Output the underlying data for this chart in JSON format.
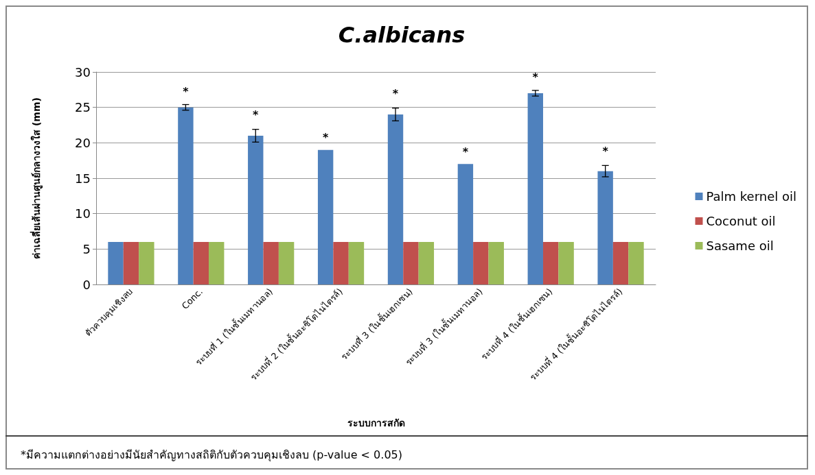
{
  "chart_data": {
    "type": "bar",
    "title": "C.albicans",
    "xlabel": "ระบบการสกัด",
    "ylabel": "ค่าเฉลี่ยเส้นผ่านศูนย์กลางวงใส (mm)",
    "categories": [
      "ตัวควบคุมเชิงลบ",
      "Conc.",
      "ระบบที่ 1 (ในชั้นเมทานอล)",
      "ระบบที่ 2 (ในชั้นอะซิโตไนไตรล์)",
      "ระบบที่ 3 (ในชั้นเฮกเซน)",
      "ระบบที่ 3 (ในชั้นเมทานอล)",
      "ระบบที่ 4 (ในชั้นเฮกเซน)",
      "ระบบที่ 4 (ในชั้นอะซิโตไนไตรล์)"
    ],
    "series": [
      {
        "name": "Palm kernel oil",
        "color": "#4f81bd",
        "values": [
          6,
          25,
          21,
          19,
          24,
          17,
          27,
          16
        ],
        "errors": [
          null,
          0.4,
          0.9,
          null,
          0.9,
          null,
          0.4,
          0.8
        ],
        "value_labels": [
          null,
          "*",
          "*",
          "*",
          "*",
          "*",
          "*",
          "*"
        ]
      },
      {
        "name": "Coconut oil",
        "color": "#c0504d",
        "values": [
          6,
          6,
          6,
          6,
          6,
          6,
          6,
          6
        ]
      },
      {
        "name": "Sasame oil",
        "color": "#9bbb59",
        "values": [
          6,
          6,
          6,
          6,
          6,
          6,
          6,
          6
        ]
      }
    ],
    "ylim": [
      0,
      30
    ],
    "yticks": [
      0,
      5,
      10,
      15,
      20,
      25,
      30
    ],
    "grid": "y",
    "legend": "right",
    "annotations": [
      "*มีความแตกต่างอย่างมีนัยสำคัญทางสถิติกับตัวควบคุมเชิงลบ (p-value < 0.05)"
    ]
  }
}
